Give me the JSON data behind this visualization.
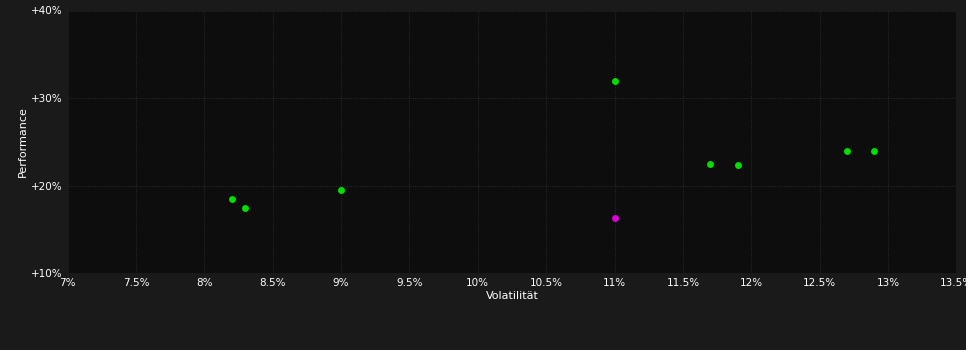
{
  "background_color": "#1a1a1a",
  "plot_bg_color": "#0d0d0d",
  "grid_color": "#333333",
  "text_color": "#ffffff",
  "xlabel": "Volatilität",
  "ylabel": "Performance",
  "xlim": [
    0.07,
    0.135
  ],
  "ylim": [
    0.1,
    0.4
  ],
  "xticks": [
    0.07,
    0.075,
    0.08,
    0.085,
    0.09,
    0.095,
    0.1,
    0.105,
    0.11,
    0.115,
    0.12,
    0.125,
    0.13,
    0.135
  ],
  "yticks": [
    0.1,
    0.2,
    0.3,
    0.4
  ],
  "ytick_labels": [
    "+10%",
    "+20%",
    "+30%",
    "+40%"
  ],
  "green_points": [
    [
      0.082,
      0.185
    ],
    [
      0.083,
      0.174
    ],
    [
      0.09,
      0.195
    ],
    [
      0.11,
      0.32
    ],
    [
      0.117,
      0.225
    ],
    [
      0.119,
      0.223
    ],
    [
      0.127,
      0.24
    ],
    [
      0.129,
      0.239
    ]
  ],
  "magenta_points": [
    [
      0.11,
      0.163
    ]
  ],
  "green_color": "#00dd00",
  "magenta_color": "#dd00dd",
  "marker_size": 5,
  "dpi": 100,
  "figsize": [
    9.66,
    3.5
  ]
}
